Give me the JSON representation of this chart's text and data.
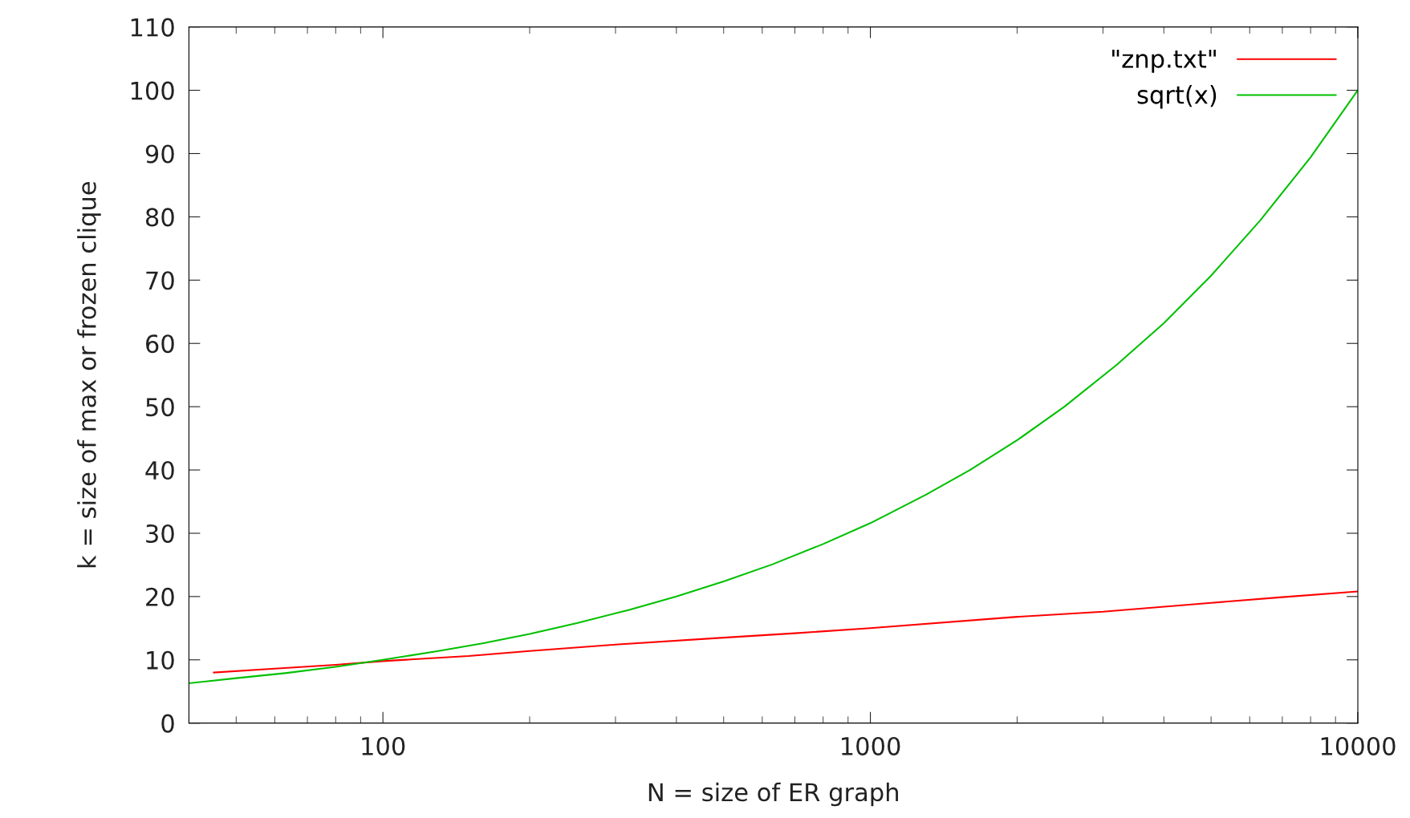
{
  "chart_data": {
    "type": "line",
    "xlabel": "N = size of ER graph",
    "ylabel": "k = size of max or frozen clique",
    "log": "x",
    "xlim": [
      40,
      10000
    ],
    "xticks": [
      100,
      1000,
      10000
    ],
    "ylim": [
      0,
      110
    ],
    "yticks": [
      0,
      10,
      20,
      30,
      40,
      50,
      60,
      70,
      80,
      90,
      100,
      110
    ],
    "grid": false,
    "legend": "top right",
    "marker": "none",
    "line_style": "solid",
    "series": [
      {
        "name": "\"znp.txt\"",
        "color": "#ff0000",
        "x": [
          45,
          60,
          80,
          100,
          150,
          200,
          300,
          500,
          700,
          1000,
          2000,
          3000,
          5000,
          7000,
          10000
        ],
        "values": [
          8,
          8.6,
          9.2,
          9.8,
          10.6,
          11.4,
          12.4,
          13.5,
          14.2,
          15,
          16.8,
          17.6,
          19,
          19.9,
          20.8
        ]
      },
      {
        "name": "sqrt(x)",
        "color": "#00c000",
        "x": [
          40,
          50,
          63,
          80,
          100,
          130,
          160,
          200,
          250,
          320,
          400,
          500,
          630,
          800,
          1000,
          1300,
          1600,
          2000,
          2500,
          3200,
          4000,
          5000,
          6300,
          8000,
          10000
        ],
        "values": [
          6.3,
          7.1,
          7.9,
          8.9,
          10,
          11.4,
          12.6,
          14.1,
          15.8,
          17.9,
          20,
          22.4,
          25.1,
          28.3,
          31.6,
          36.1,
          40,
          44.7,
          50,
          56.6,
          63.2,
          70.7,
          79.4,
          89.4,
          100
        ]
      }
    ]
  }
}
